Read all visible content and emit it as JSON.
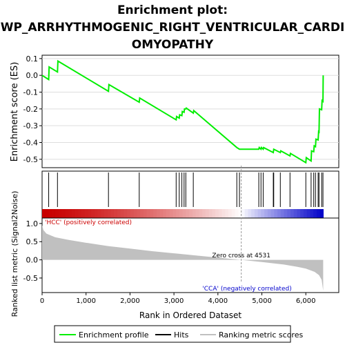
{
  "chart_data": {
    "type": "line",
    "title_lines": [
      "Enrichment plot:",
      "WP_ARRHYTHMOGENIC_RIGHT_VENTRICULAR_CARDI",
      "OMYOPATHY"
    ],
    "es_panel": {
      "ylabel": "Enrichment score (ES)",
      "ylim": [
        -0.55,
        0.12
      ],
      "yticks": [
        0.1,
        0.0,
        -0.1,
        -0.2,
        -0.3,
        -0.4,
        -0.5
      ],
      "ytick_labels": [
        "0.1",
        "0.0",
        "-0.1",
        "-0.2",
        "-0.3",
        "-0.4",
        "-0.5"
      ],
      "grid": true,
      "series": [
        {
          "name": "Enrichment profile",
          "color": "#00ee00",
          "points": [
            [
              0,
              0.0
            ],
            [
              150,
              -0.025
            ],
            [
              160,
              0.05
            ],
            [
              350,
              0.02
            ],
            [
              360,
              0.085
            ],
            [
              1510,
              -0.095
            ],
            [
              1520,
              -0.055
            ],
            [
              2210,
              -0.16
            ],
            [
              2220,
              -0.135
            ],
            [
              3050,
              -0.265
            ],
            [
              3060,
              -0.245
            ],
            [
              3120,
              -0.255
            ],
            [
              3130,
              -0.235
            ],
            [
              3180,
              -0.24
            ],
            [
              3190,
              -0.215
            ],
            [
              3230,
              -0.22
            ],
            [
              3240,
              -0.2
            ],
            [
              3270,
              -0.2
            ],
            [
              3280,
              -0.195
            ],
            [
              3440,
              -0.225
            ],
            [
              3450,
              -0.21
            ],
            [
              4430,
              -0.43
            ],
            [
              4490,
              -0.44
            ],
            [
              4930,
              -0.44
            ],
            [
              4940,
              -0.43
            ],
            [
              4980,
              -0.44
            ],
            [
              4990,
              -0.43
            ],
            [
              5030,
              -0.44
            ],
            [
              5040,
              -0.43
            ],
            [
              5260,
              -0.46
            ],
            [
              5270,
              -0.44
            ],
            [
              5420,
              -0.46
            ],
            [
              5430,
              -0.45
            ],
            [
              5640,
              -0.48
            ],
            [
              5650,
              -0.465
            ],
            [
              6000,
              -0.52
            ],
            [
              6010,
              -0.49
            ],
            [
              6120,
              -0.51
            ],
            [
              6130,
              -0.45
            ],
            [
              6180,
              -0.455
            ],
            [
              6190,
              -0.42
            ],
            [
              6220,
              -0.425
            ],
            [
              6230,
              -0.38
            ],
            [
              6280,
              -0.385
            ],
            [
              6290,
              -0.34
            ],
            [
              6300,
              -0.345
            ],
            [
              6310,
              -0.2
            ],
            [
              6360,
              -0.205
            ],
            [
              6370,
              -0.15
            ],
            [
              6390,
              -0.155
            ],
            [
              6395,
              0.0
            ]
          ]
        }
      ]
    },
    "hits_panel": {
      "series_name": "Hits",
      "color": "#000000",
      "hit_ranks": [
        150,
        350,
        1510,
        2210,
        3050,
        3120,
        3180,
        3230,
        3270,
        3440,
        4430,
        4490,
        4930,
        4980,
        5030,
        5260,
        5270,
        5420,
        5640,
        6000,
        6120,
        6180,
        6220,
        6280,
        6300,
        6360,
        6390
      ]
    },
    "ranked_metric_panel": {
      "ylabel": "Ranked list metric (Signal2Noise)",
      "xlabel": "Rank in Ordered Dataset",
      "series_name": "Ranking metric scores",
      "ylim": [
        -0.9,
        1.15
      ],
      "yticks": [
        1.0,
        0.5,
        0.0,
        -0.5
      ],
      "ytick_labels": [
        "1.0",
        "0.5",
        "0.0",
        "-0.5"
      ],
      "xlim": [
        0,
        6750
      ],
      "xticks": [
        0,
        1000,
        2000,
        3000,
        4000,
        5000,
        6000
      ],
      "xtick_labels": [
        "0",
        "1,000",
        "2,000",
        "3,000",
        "4,000",
        "5,000",
        "6,000"
      ],
      "fill_color": "#c0c0c0",
      "curve": [
        [
          0,
          0.95
        ],
        [
          30,
          0.82
        ],
        [
          100,
          0.72
        ],
        [
          300,
          0.62
        ],
        [
          600,
          0.55
        ],
        [
          1000,
          0.47
        ],
        [
          1500,
          0.38
        ],
        [
          2000,
          0.31
        ],
        [
          2500,
          0.24
        ],
        [
          3000,
          0.18
        ],
        [
          3500,
          0.12
        ],
        [
          4000,
          0.06
        ],
        [
          4531,
          0.0
        ],
        [
          5000,
          -0.06
        ],
        [
          5500,
          -0.13
        ],
        [
          5800,
          -0.19
        ],
        [
          6000,
          -0.24
        ],
        [
          6200,
          -0.33
        ],
        [
          6300,
          -0.42
        ],
        [
          6360,
          -0.55
        ],
        [
          6395,
          -0.85
        ]
      ],
      "zero_cross_rank": 4531,
      "zero_cross_label": "Zero cross at 4531",
      "pos_label": "'HCC' (positively correlated)",
      "neg_label": "'CCA' (negatively correlated)",
      "pos_color": "#cc0000",
      "neg_color": "#0000cc"
    },
    "legend": {
      "placement": "bottom",
      "items": [
        {
          "name": "Enrichment profile",
          "color": "#00ee00",
          "kind": "line"
        },
        {
          "name": "Hits",
          "color": "#000000",
          "kind": "line"
        },
        {
          "name": "Ranking metric scores",
          "color": "#c0c0c0",
          "kind": "line"
        }
      ]
    },
    "max_rank": 6750
  }
}
